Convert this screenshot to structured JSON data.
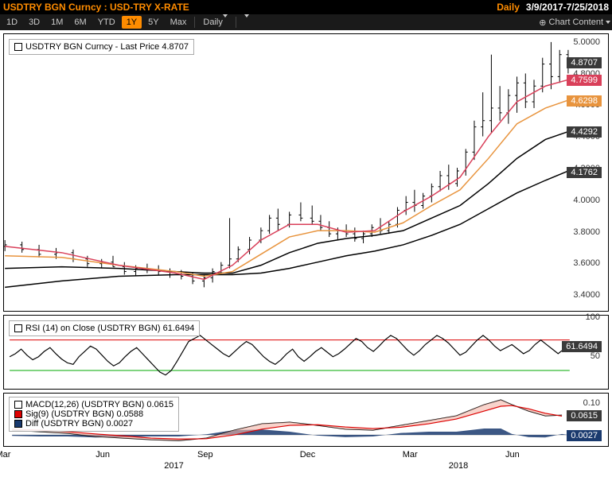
{
  "header": {
    "title": "USDTRY BGN Curncy : USD-TRY X-RATE",
    "frequency": "Daily",
    "date_range": "3/9/2017-7/25/2018"
  },
  "toolbar": {
    "ranges": [
      "1D",
      "3D",
      "1M",
      "6M",
      "YTD",
      "1Y",
      "5Y",
      "Max"
    ],
    "active": "1Y",
    "freq": "Daily",
    "chart_content": "Chart Content"
  },
  "price": {
    "legend": "USDTRY BGN Curncy - Last Price  4.8707",
    "ylim": [
      3.3,
      5.05
    ],
    "yticks": [
      3.4,
      3.6,
      3.8,
      4.0,
      4.2,
      4.4,
      4.6,
      4.8,
      5.0
    ],
    "labels": [
      {
        "v": 4.8707,
        "c": "#3a3a3a"
      },
      {
        "v": 4.7599,
        "c": "#d9405a"
      },
      {
        "v": 4.6298,
        "c": "#e8943e"
      },
      {
        "v": 4.4292,
        "c": "#3a3a3a"
      },
      {
        "v": 4.1762,
        "c": "#3a3a3a"
      }
    ],
    "price_series": [
      {
        "x": 0.0,
        "o": 3.7,
        "h": 3.74,
        "l": 3.67,
        "c": 3.71
      },
      {
        "x": 0.03,
        "o": 3.71,
        "h": 3.73,
        "l": 3.66,
        "c": 3.68
      },
      {
        "x": 0.06,
        "o": 3.68,
        "h": 3.71,
        "l": 3.63,
        "c": 3.65
      },
      {
        "x": 0.09,
        "o": 3.65,
        "h": 3.69,
        "l": 3.62,
        "c": 3.66
      },
      {
        "x": 0.12,
        "o": 3.66,
        "h": 3.68,
        "l": 3.6,
        "c": 3.62
      },
      {
        "x": 0.145,
        "o": 3.62,
        "h": 3.64,
        "l": 3.57,
        "c": 3.59
      },
      {
        "x": 0.17,
        "o": 3.59,
        "h": 3.62,
        "l": 3.56,
        "c": 3.6
      },
      {
        "x": 0.19,
        "o": 3.6,
        "h": 3.64,
        "l": 3.57,
        "c": 3.57
      },
      {
        "x": 0.21,
        "o": 3.57,
        "h": 3.6,
        "l": 3.52,
        "c": 3.54
      },
      {
        "x": 0.23,
        "o": 3.54,
        "h": 3.58,
        "l": 3.51,
        "c": 3.56
      },
      {
        "x": 0.25,
        "o": 3.56,
        "h": 3.59,
        "l": 3.53,
        "c": 3.55
      },
      {
        "x": 0.27,
        "o": 3.55,
        "h": 3.58,
        "l": 3.52,
        "c": 3.54
      },
      {
        "x": 0.29,
        "o": 3.54,
        "h": 3.56,
        "l": 3.5,
        "c": 3.52
      },
      {
        "x": 0.31,
        "o": 3.52,
        "h": 3.55,
        "l": 3.49,
        "c": 3.51
      },
      {
        "x": 0.33,
        "o": 3.51,
        "h": 3.53,
        "l": 3.46,
        "c": 3.48
      },
      {
        "x": 0.35,
        "o": 3.48,
        "h": 3.52,
        "l": 3.44,
        "c": 3.5
      },
      {
        "x": 0.365,
        "o": 3.5,
        "h": 3.56,
        "l": 3.47,
        "c": 3.54
      },
      {
        "x": 0.38,
        "o": 3.54,
        "h": 3.6,
        "l": 3.52,
        "c": 3.58
      },
      {
        "x": 0.395,
        "o": 3.58,
        "h": 3.88,
        "l": 3.56,
        "c": 3.62
      },
      {
        "x": 0.41,
        "o": 3.62,
        "h": 3.7,
        "l": 3.6,
        "c": 3.68
      },
      {
        "x": 0.43,
        "o": 3.68,
        "h": 3.76,
        "l": 3.65,
        "c": 3.74
      },
      {
        "x": 0.45,
        "o": 3.74,
        "h": 3.82,
        "l": 3.72,
        "c": 3.8
      },
      {
        "x": 0.465,
        "o": 3.8,
        "h": 3.9,
        "l": 3.78,
        "c": 3.88
      },
      {
        "x": 0.48,
        "o": 3.88,
        "h": 3.94,
        "l": 3.8,
        "c": 3.84
      },
      {
        "x": 0.5,
        "o": 3.84,
        "h": 3.92,
        "l": 3.82,
        "c": 3.9
      },
      {
        "x": 0.52,
        "o": 3.9,
        "h": 3.98,
        "l": 3.86,
        "c": 3.88
      },
      {
        "x": 0.54,
        "o": 3.88,
        "h": 3.96,
        "l": 3.84,
        "c": 3.86
      },
      {
        "x": 0.555,
        "o": 3.86,
        "h": 3.9,
        "l": 3.8,
        "c": 3.82
      },
      {
        "x": 0.57,
        "o": 3.82,
        "h": 3.86,
        "l": 3.76,
        "c": 3.78
      },
      {
        "x": 0.585,
        "o": 3.78,
        "h": 3.82,
        "l": 3.74,
        "c": 3.8
      },
      {
        "x": 0.6,
        "o": 3.8,
        "h": 3.84,
        "l": 3.76,
        "c": 3.78
      },
      {
        "x": 0.615,
        "o": 3.78,
        "h": 3.82,
        "l": 3.73,
        "c": 3.75
      },
      {
        "x": 0.63,
        "o": 3.75,
        "h": 3.8,
        "l": 3.72,
        "c": 3.78
      },
      {
        "x": 0.645,
        "o": 3.78,
        "h": 3.84,
        "l": 3.76,
        "c": 3.82
      },
      {
        "x": 0.66,
        "o": 3.82,
        "h": 3.88,
        "l": 3.78,
        "c": 3.8
      },
      {
        "x": 0.675,
        "o": 3.8,
        "h": 3.86,
        "l": 3.78,
        "c": 3.84
      },
      {
        "x": 0.69,
        "o": 3.84,
        "h": 3.95,
        "l": 3.82,
        "c": 3.93
      },
      {
        "x": 0.705,
        "o": 3.93,
        "h": 4.02,
        "l": 3.9,
        "c": 3.98
      },
      {
        "x": 0.72,
        "o": 3.98,
        "h": 4.06,
        "l": 3.92,
        "c": 3.96
      },
      {
        "x": 0.735,
        "o": 3.96,
        "h": 4.04,
        "l": 3.94,
        "c": 4.02
      },
      {
        "x": 0.75,
        "o": 4.02,
        "h": 4.1,
        "l": 3.98,
        "c": 4.08
      },
      {
        "x": 0.765,
        "o": 4.08,
        "h": 4.18,
        "l": 4.05,
        "c": 4.15
      },
      {
        "x": 0.78,
        "o": 4.15,
        "h": 4.22,
        "l": 4.06,
        "c": 4.1
      },
      {
        "x": 0.795,
        "o": 4.1,
        "h": 4.2,
        "l": 4.08,
        "c": 4.18
      },
      {
        "x": 0.81,
        "o": 4.18,
        "h": 4.32,
        "l": 4.15,
        "c": 4.3
      },
      {
        "x": 0.825,
        "o": 4.3,
        "h": 4.5,
        "l": 4.25,
        "c": 4.46
      },
      {
        "x": 0.84,
        "o": 4.46,
        "h": 4.68,
        "l": 4.4,
        "c": 4.5
      },
      {
        "x": 0.855,
        "o": 4.5,
        "h": 4.92,
        "l": 4.42,
        "c": 4.58
      },
      {
        "x": 0.87,
        "o": 4.58,
        "h": 4.72,
        "l": 4.5,
        "c": 4.55
      },
      {
        "x": 0.885,
        "o": 4.55,
        "h": 4.7,
        "l": 4.48,
        "c": 4.66
      },
      {
        "x": 0.9,
        "o": 4.66,
        "h": 4.78,
        "l": 4.55,
        "c": 4.74
      },
      {
        "x": 0.915,
        "o": 4.74,
        "h": 4.8,
        "l": 4.58,
        "c": 4.62
      },
      {
        "x": 0.93,
        "o": 4.62,
        "h": 4.76,
        "l": 4.58,
        "c": 4.72
      },
      {
        "x": 0.945,
        "o": 4.72,
        "h": 4.9,
        "l": 4.68,
        "c": 4.86
      },
      {
        "x": 0.96,
        "o": 4.86,
        "h": 5.0,
        "l": 4.7,
        "c": 4.78
      },
      {
        "x": 0.975,
        "o": 4.78,
        "h": 4.95,
        "l": 4.74,
        "c": 4.92
      },
      {
        "x": 0.99,
        "o": 4.92,
        "h": 4.95,
        "l": 4.8,
        "c": 4.87
      }
    ],
    "ma_red": {
      "color": "#d9405a",
      "pts": [
        [
          0,
          3.7
        ],
        [
          0.1,
          3.66
        ],
        [
          0.2,
          3.58
        ],
        [
          0.3,
          3.53
        ],
        [
          0.35,
          3.49
        ],
        [
          0.4,
          3.58
        ],
        [
          0.45,
          3.74
        ],
        [
          0.5,
          3.84
        ],
        [
          0.55,
          3.84
        ],
        [
          0.6,
          3.79
        ],
        [
          0.65,
          3.8
        ],
        [
          0.7,
          3.92
        ],
        [
          0.75,
          4.02
        ],
        [
          0.8,
          4.14
        ],
        [
          0.85,
          4.4
        ],
        [
          0.9,
          4.62
        ],
        [
          0.95,
          4.72
        ],
        [
          0.99,
          4.76
        ]
      ]
    },
    "ma_orange": {
      "color": "#e8943e",
      "pts": [
        [
          0,
          3.64
        ],
        [
          0.1,
          3.63
        ],
        [
          0.2,
          3.58
        ],
        [
          0.3,
          3.54
        ],
        [
          0.35,
          3.51
        ],
        [
          0.4,
          3.54
        ],
        [
          0.45,
          3.65
        ],
        [
          0.5,
          3.76
        ],
        [
          0.55,
          3.8
        ],
        [
          0.6,
          3.8
        ],
        [
          0.65,
          3.79
        ],
        [
          0.7,
          3.85
        ],
        [
          0.75,
          3.96
        ],
        [
          0.8,
          4.06
        ],
        [
          0.85,
          4.26
        ],
        [
          0.9,
          4.48
        ],
        [
          0.95,
          4.58
        ],
        [
          0.99,
          4.63
        ]
      ]
    },
    "ma_black1": {
      "color": "#000",
      "pts": [
        [
          0,
          3.56
        ],
        [
          0.1,
          3.57
        ],
        [
          0.2,
          3.56
        ],
        [
          0.3,
          3.54
        ],
        [
          0.35,
          3.53
        ],
        [
          0.4,
          3.53
        ],
        [
          0.45,
          3.58
        ],
        [
          0.5,
          3.66
        ],
        [
          0.55,
          3.72
        ],
        [
          0.6,
          3.75
        ],
        [
          0.65,
          3.77
        ],
        [
          0.7,
          3.8
        ],
        [
          0.75,
          3.88
        ],
        [
          0.8,
          3.96
        ],
        [
          0.85,
          4.1
        ],
        [
          0.9,
          4.26
        ],
        [
          0.95,
          4.38
        ],
        [
          0.99,
          4.43
        ]
      ]
    },
    "ma_black2": {
      "color": "#000",
      "pts": [
        [
          0,
          3.44
        ],
        [
          0.1,
          3.48
        ],
        [
          0.2,
          3.51
        ],
        [
          0.3,
          3.52
        ],
        [
          0.35,
          3.52
        ],
        [
          0.4,
          3.52
        ],
        [
          0.45,
          3.53
        ],
        [
          0.5,
          3.56
        ],
        [
          0.55,
          3.6
        ],
        [
          0.6,
          3.64
        ],
        [
          0.65,
          3.67
        ],
        [
          0.7,
          3.71
        ],
        [
          0.75,
          3.77
        ],
        [
          0.8,
          3.84
        ],
        [
          0.85,
          3.94
        ],
        [
          0.9,
          4.04
        ],
        [
          0.95,
          4.12
        ],
        [
          0.99,
          4.18
        ]
      ]
    }
  },
  "rsi": {
    "legend": "RSI (14) on Close (USDTRY BGN)  61.6494",
    "ylim": [
      8,
      102
    ],
    "yticks": [
      50,
      100
    ],
    "value_label": {
      "v": 61.6494,
      "c": "#3a3a3a"
    },
    "upper": 70,
    "lower": 30,
    "pts": [
      48,
      52,
      58,
      50,
      44,
      48,
      55,
      60,
      52,
      45,
      40,
      38,
      48,
      55,
      62,
      58,
      50,
      42,
      36,
      40,
      48,
      55,
      60,
      52,
      44,
      36,
      28,
      24,
      30,
      42,
      55,
      68,
      72,
      76,
      70,
      64,
      58,
      52,
      48,
      55,
      62,
      68,
      64,
      56,
      48,
      42,
      38,
      44,
      52,
      58,
      48,
      42,
      48,
      55,
      60,
      54,
      48,
      52,
      58,
      65,
      72,
      68,
      60,
      55,
      62,
      70,
      76,
      72,
      64,
      56,
      50,
      56,
      64,
      70,
      76,
      72,
      66,
      58,
      50,
      54,
      62,
      70,
      76,
      70,
      62,
      56,
      60,
      64,
      58,
      52,
      56,
      64,
      70,
      64,
      58,
      52,
      58,
      62
    ]
  },
  "macd": {
    "legend_lines": [
      {
        "sq": "white",
        "txt": "MACD(12,26) (USDTRY BGN)  0.0615"
      },
      {
        "sq": "red",
        "txt": "Sig(9) (USDTRY BGN)          0.0588"
      },
      {
        "sq": "navy",
        "txt": "Diff (USDTRY BGN)             0.0027"
      }
    ],
    "ylim": [
      -0.03,
      0.13
    ],
    "labels": [
      {
        "v": "0.10",
        "y": 0.1,
        "c": null
      },
      {
        "v": "0.0615",
        "y": 0.0615,
        "c": "#3a3a3a"
      },
      {
        "v": "0.0027",
        "y": 0.0027,
        "c": "#1a3a6e"
      }
    ],
    "zero": 0,
    "macd_pts": [
      [
        0,
        0.015
      ],
      [
        0.05,
        0.01
      ],
      [
        0.1,
        0.005
      ],
      [
        0.15,
        -0.005
      ],
      [
        0.2,
        -0.01
      ],
      [
        0.25,
        -0.015
      ],
      [
        0.3,
        -0.018
      ],
      [
        0.35,
        -0.01
      ],
      [
        0.4,
        0.015
      ],
      [
        0.45,
        0.035
      ],
      [
        0.5,
        0.04
      ],
      [
        0.55,
        0.03
      ],
      [
        0.6,
        0.018
      ],
      [
        0.65,
        0.015
      ],
      [
        0.7,
        0.03
      ],
      [
        0.75,
        0.045
      ],
      [
        0.8,
        0.06
      ],
      [
        0.85,
        0.095
      ],
      [
        0.88,
        0.11
      ],
      [
        0.9,
        0.095
      ],
      [
        0.93,
        0.075
      ],
      [
        0.96,
        0.06
      ],
      [
        0.99,
        0.062
      ]
    ],
    "sig_pts": [
      [
        0,
        0.018
      ],
      [
        0.05,
        0.015
      ],
      [
        0.1,
        0.01
      ],
      [
        0.15,
        0.003
      ],
      [
        0.2,
        -0.003
      ],
      [
        0.25,
        -0.01
      ],
      [
        0.3,
        -0.013
      ],
      [
        0.35,
        -0.012
      ],
      [
        0.4,
        0.0
      ],
      [
        0.45,
        0.018
      ],
      [
        0.5,
        0.03
      ],
      [
        0.55,
        0.032
      ],
      [
        0.6,
        0.025
      ],
      [
        0.65,
        0.02
      ],
      [
        0.7,
        0.024
      ],
      [
        0.75,
        0.035
      ],
      [
        0.8,
        0.05
      ],
      [
        0.85,
        0.075
      ],
      [
        0.88,
        0.09
      ],
      [
        0.9,
        0.092
      ],
      [
        0.93,
        0.082
      ],
      [
        0.96,
        0.068
      ],
      [
        0.99,
        0.059
      ]
    ],
    "diff": [
      [
        0,
        -0.003
      ],
      [
        0.05,
        -0.005
      ],
      [
        0.1,
        -0.005
      ],
      [
        0.15,
        -0.008
      ],
      [
        0.2,
        -0.007
      ],
      [
        0.25,
        -0.005
      ],
      [
        0.3,
        -0.005
      ],
      [
        0.35,
        0.002
      ],
      [
        0.4,
        0.015
      ],
      [
        0.45,
        0.017
      ],
      [
        0.5,
        0.01
      ],
      [
        0.55,
        -0.002
      ],
      [
        0.6,
        -0.007
      ],
      [
        0.65,
        -0.005
      ],
      [
        0.7,
        0.006
      ],
      [
        0.75,
        0.01
      ],
      [
        0.8,
        0.01
      ],
      [
        0.85,
        0.02
      ],
      [
        0.88,
        0.02
      ],
      [
        0.9,
        0.003
      ],
      [
        0.93,
        -0.007
      ],
      [
        0.96,
        -0.008
      ],
      [
        0.99,
        0.003
      ]
    ]
  },
  "xaxis": {
    "months": [
      {
        "x": 0.0,
        "l": "Mar"
      },
      {
        "x": 0.175,
        "l": "Jun"
      },
      {
        "x": 0.355,
        "l": "Sep"
      },
      {
        "x": 0.535,
        "l": "Dec"
      },
      {
        "x": 0.715,
        "l": "Mar"
      },
      {
        "x": 0.895,
        "l": "Jun"
      }
    ],
    "years": [
      {
        "x": 0.3,
        "l": "2017"
      },
      {
        "x": 0.8,
        "l": "2018"
      }
    ]
  }
}
